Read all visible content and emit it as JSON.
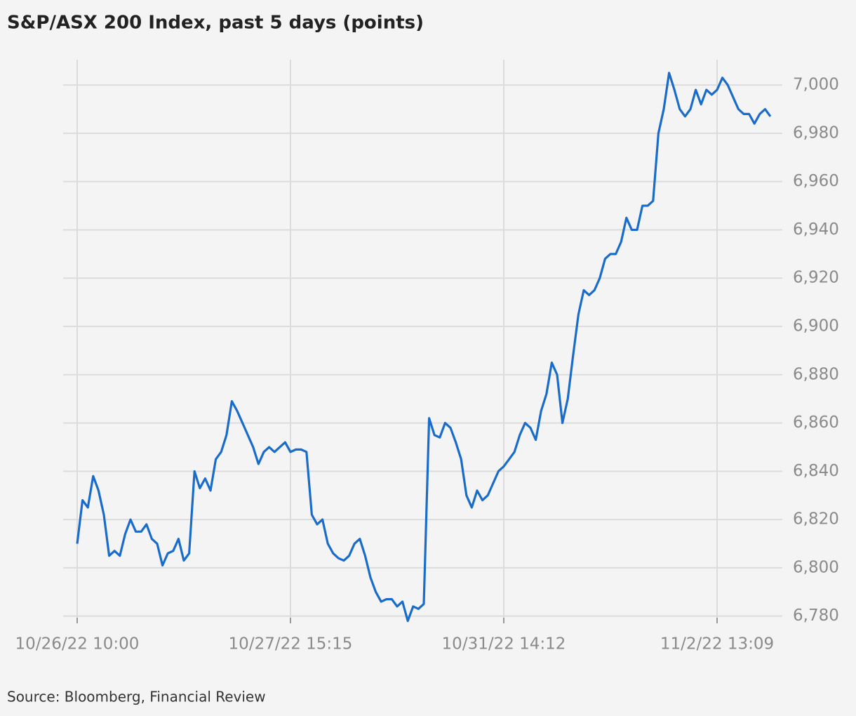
{
  "chart_data": {
    "type": "line",
    "title": "S&P/ASX 200 Index, past 5 days (points)",
    "source": "Source: Bloomberg, Financial Review",
    "categories": [
      "10/26/22 10:00",
      null,
      null,
      null,
      null,
      null,
      null,
      null,
      null,
      null,
      null,
      null,
      null,
      null,
      null,
      null,
      null,
      null,
      null,
      null,
      null,
      null,
      null,
      null,
      null,
      null,
      null,
      null,
      null,
      null,
      null,
      null,
      null,
      null,
      null,
      null,
      null,
      null,
      null,
      null,
      "10/27/22 15:15",
      null,
      null,
      null,
      null,
      null,
      null,
      null,
      null,
      null,
      null,
      null,
      null,
      null,
      null,
      null,
      null,
      null,
      null,
      null,
      null,
      null,
      null,
      null,
      null,
      null,
      null,
      null,
      null,
      null,
      null,
      null,
      null,
      null,
      null,
      null,
      null,
      null,
      null,
      null,
      "10/31/22 14:12",
      null,
      null,
      null,
      null,
      null,
      null,
      null,
      null,
      null,
      null,
      null,
      null,
      null,
      null,
      null,
      null,
      null,
      null,
      null,
      null,
      null,
      null,
      null,
      null,
      null,
      null,
      null,
      null,
      null,
      null,
      null,
      null,
      null,
      null,
      null,
      null,
      null,
      null,
      null,
      "11/2/22 13:09",
      null,
      null,
      null,
      null,
      null,
      null,
      null,
      null,
      null,
      null
    ],
    "series": [
      {
        "name": "S&P/ASX 200",
        "color": "#1a6ccb",
        "values": [
          6810,
          6828,
          6825,
          6838,
          6832,
          6822,
          6805,
          6807,
          6805,
          6814,
          6820,
          6815,
          6815,
          6818,
          6812,
          6810,
          6801,
          6806,
          6807,
          6812,
          6803,
          6806,
          6840,
          6833,
          6837,
          6832,
          6845,
          6848,
          6855,
          6869,
          6865,
          6860,
          6855,
          6850,
          6843,
          6848,
          6850,
          6848,
          6850,
          6852,
          6848,
          6849,
          6849,
          6848,
          6822,
          6818,
          6820,
          6810,
          6806,
          6804,
          6803,
          6805,
          6810,
          6812,
          6805,
          6796,
          6790,
          6786,
          6787,
          6787,
          6784,
          6786,
          6778,
          6784,
          6783,
          6785,
          6862,
          6855,
          6854,
          6860,
          6858,
          6852,
          6845,
          6830,
          6825,
          6832,
          6828,
          6830,
          6835,
          6840,
          6842,
          6845,
          6848,
          6855,
          6860,
          6858,
          6853,
          6865,
          6872,
          6885,
          6880,
          6860,
          6870,
          6888,
          6905,
          6915,
          6913,
          6915,
          6920,
          6928,
          6930,
          6930,
          6935,
          6945,
          6940,
          6940,
          6950,
          6950,
          6952,
          6980,
          6990,
          7005,
          6998,
          6990,
          6987,
          6990,
          6998,
          6992,
          6998,
          6996,
          6998,
          7003,
          7000,
          6995,
          6990,
          6988,
          6988,
          6984,
          6988,
          6990,
          6987
        ]
      }
    ],
    "ylim": [
      6777,
      7010.5
    ],
    "yticks": [
      {
        "value": 6780,
        "label": "6,780"
      },
      {
        "value": 6800,
        "label": "6,800"
      },
      {
        "value": 6820,
        "label": "6,820"
      },
      {
        "value": 6840,
        "label": "6,840"
      },
      {
        "value": 6860,
        "label": "6,860"
      },
      {
        "value": 6880,
        "label": "6,880"
      },
      {
        "value": 6900,
        "label": "6,900"
      },
      {
        "value": 6920,
        "label": "6,920"
      },
      {
        "value": 6940,
        "label": "6,940"
      },
      {
        "value": 6960,
        "label": "6,960"
      },
      {
        "value": 6980,
        "label": "6,980"
      },
      {
        "value": 7000,
        "label": "7,000"
      }
    ],
    "grid": true
  }
}
